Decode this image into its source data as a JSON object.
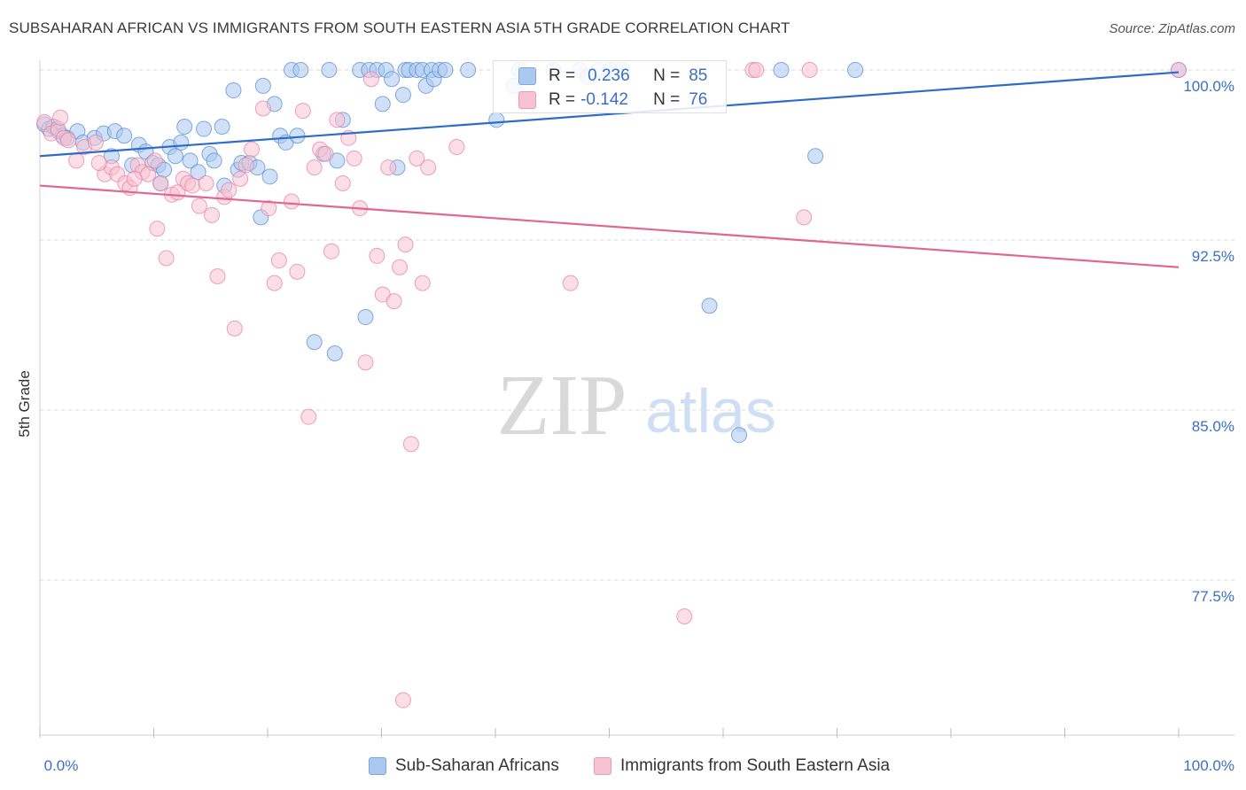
{
  "title": "SUBSAHARAN AFRICAN VS IMMIGRANTS FROM SOUTH EASTERN ASIA 5TH GRADE CORRELATION CHART",
  "source": "Source: ZipAtlas.com",
  "watermark": {
    "zip": "ZIP",
    "atlas": "atlas"
  },
  "colors": {
    "blue": "#5b8ed6",
    "blue_fill": "#aac8f0",
    "blue_line": "#2e6cc8",
    "pink": "#e882a5",
    "pink_fill": "#f7c3d2",
    "pink_line": "#e06694",
    "tick_label": "#3b6fc6",
    "grid": "#d8d8d8"
  },
  "stats": {
    "rows": [
      {
        "r_label": "R =",
        "r_value": "0.236",
        "n_label": "N =",
        "n_value": "85"
      },
      {
        "r_label": "R =",
        "r_value": "-0.142",
        "n_label": "N =",
        "n_value": "76"
      }
    ]
  },
  "legend": {
    "items": [
      {
        "label": "Sub-Saharan Africans"
      },
      {
        "label": "Immigrants from South Eastern Asia"
      }
    ]
  },
  "chart_data": {
    "type": "scatter",
    "title": "SUBSAHARAN AFRICAN VS IMMIGRANTS FROM SOUTH EASTERN ASIA 5TH GRADE CORRELATION CHART",
    "xlabel": "",
    "ylabel": "5th Grade",
    "xlim": [
      0,
      100
    ],
    "ylim": [
      71.2,
      101.5
    ],
    "x_tick_labels": [
      "0.0%",
      "100.0%"
    ],
    "y_ticks": [
      100.0,
      92.5,
      85.0,
      77.5
    ],
    "y_tick_labels": [
      "100.0%",
      "92.5%",
      "85.0%",
      "77.5%"
    ],
    "grid": true,
    "legend_position": "bottom-center",
    "series": [
      {
        "name": "Sub-Saharan Africans",
        "color": "#5b8ed6",
        "trend": {
          "x": [
            0,
            100
          ],
          "y": [
            96.2,
            99.9
          ]
        },
        "points": [
          [
            0.4,
            97.6
          ],
          [
            0.8,
            97.4
          ],
          [
            1.2,
            97.5
          ],
          [
            1.6,
            97.3
          ],
          [
            2.0,
            97.1
          ],
          [
            2.4,
            97.0
          ],
          [
            3.3,
            97.3
          ],
          [
            3.8,
            96.8
          ],
          [
            4.8,
            97.0
          ],
          [
            5.6,
            97.2
          ],
          [
            6.3,
            96.2
          ],
          [
            6.6,
            97.3
          ],
          [
            7.4,
            97.1
          ],
          [
            8.1,
            95.8
          ],
          [
            8.7,
            96.7
          ],
          [
            9.3,
            96.4
          ],
          [
            9.9,
            95.9
          ],
          [
            10.4,
            95.8
          ],
          [
            10.6,
            95.0
          ],
          [
            10.9,
            95.6
          ],
          [
            11.4,
            96.6
          ],
          [
            11.9,
            96.2
          ],
          [
            12.4,
            96.8
          ],
          [
            12.7,
            97.5
          ],
          [
            13.2,
            96.0
          ],
          [
            13.9,
            95.5
          ],
          [
            14.4,
            97.4
          ],
          [
            14.9,
            96.3
          ],
          [
            15.3,
            96.0
          ],
          [
            16.0,
            97.5
          ],
          [
            16.2,
            94.9
          ],
          [
            17.0,
            99.1
          ],
          [
            17.4,
            95.6
          ],
          [
            17.7,
            95.9
          ],
          [
            18.4,
            95.9
          ],
          [
            19.1,
            95.7
          ],
          [
            19.4,
            93.5
          ],
          [
            19.6,
            99.3
          ],
          [
            20.2,
            95.3
          ],
          [
            20.6,
            98.5
          ],
          [
            21.1,
            97.1
          ],
          [
            21.6,
            96.8
          ],
          [
            22.1,
            100.0
          ],
          [
            22.6,
            97.1
          ],
          [
            22.9,
            100.0
          ],
          [
            24.1,
            88.0
          ],
          [
            24.9,
            96.3
          ],
          [
            25.4,
            100.0
          ],
          [
            25.9,
            87.5
          ],
          [
            26.1,
            96.0
          ],
          [
            26.6,
            97.8
          ],
          [
            28.1,
            100.0
          ],
          [
            28.6,
            89.1
          ],
          [
            28.9,
            100.0
          ],
          [
            29.6,
            100.0
          ],
          [
            30.1,
            98.5
          ],
          [
            30.4,
            100.0
          ],
          [
            30.9,
            99.6
          ],
          [
            31.4,
            95.7
          ],
          [
            31.9,
            98.9
          ],
          [
            32.1,
            100.0
          ],
          [
            32.4,
            100.0
          ],
          [
            33.1,
            100.0
          ],
          [
            33.6,
            100.0
          ],
          [
            33.9,
            99.3
          ],
          [
            34.4,
            100.0
          ],
          [
            34.6,
            99.6
          ],
          [
            35.1,
            100.0
          ],
          [
            35.6,
            100.0
          ],
          [
            37.6,
            100.0
          ],
          [
            40.1,
            97.8
          ],
          [
            41.6,
            99.3
          ],
          [
            42.1,
            100.0
          ],
          [
            45.1,
            100.0
          ],
          [
            47.4,
            100.0
          ],
          [
            48.1,
            99.7
          ],
          [
            49.1,
            100.0
          ],
          [
            50.1,
            100.0
          ],
          [
            51.1,
            100.0
          ],
          [
            58.8,
            89.6
          ],
          [
            61.4,
            83.9
          ],
          [
            65.1,
            100.0
          ],
          [
            68.1,
            96.2
          ],
          [
            71.6,
            100.0
          ],
          [
            100.0,
            100.0
          ]
        ]
      },
      {
        "name": "Immigrants from South Eastern Asia",
        "color": "#e882a5",
        "trend": {
          "x": [
            0,
            100
          ],
          "y": [
            94.9,
            91.3
          ]
        },
        "points": [
          [
            0.4,
            97.7
          ],
          [
            1.0,
            97.2
          ],
          [
            1.6,
            97.4
          ],
          [
            2.1,
            97.0
          ],
          [
            2.5,
            96.9
          ],
          [
            3.2,
            96.0
          ],
          [
            3.9,
            96.6
          ],
          [
            4.9,
            96.8
          ],
          [
            5.7,
            95.4
          ],
          [
            6.3,
            95.7
          ],
          [
            6.8,
            95.4
          ],
          [
            7.5,
            95.0
          ],
          [
            7.9,
            94.8
          ],
          [
            8.6,
            95.8
          ],
          [
            9.0,
            95.5
          ],
          [
            9.5,
            95.4
          ],
          [
            10.1,
            96.0
          ],
          [
            10.3,
            93.0
          ],
          [
            10.6,
            95.0
          ],
          [
            11.1,
            91.7
          ],
          [
            11.6,
            94.5
          ],
          [
            12.1,
            94.6
          ],
          [
            12.6,
            95.2
          ],
          [
            13.0,
            95.0
          ],
          [
            13.4,
            94.9
          ],
          [
            14.0,
            94.0
          ],
          [
            14.6,
            95.0
          ],
          [
            15.1,
            93.6
          ],
          [
            15.6,
            90.9
          ],
          [
            16.2,
            94.4
          ],
          [
            16.6,
            94.7
          ],
          [
            17.1,
            88.6
          ],
          [
            17.6,
            95.2
          ],
          [
            18.1,
            95.8
          ],
          [
            18.6,
            96.5
          ],
          [
            19.6,
            98.3
          ],
          [
            20.1,
            93.9
          ],
          [
            20.6,
            90.6
          ],
          [
            21.0,
            91.6
          ],
          [
            22.1,
            94.2
          ],
          [
            22.6,
            91.1
          ],
          [
            23.1,
            98.2
          ],
          [
            23.6,
            84.7
          ],
          [
            24.1,
            95.7
          ],
          [
            24.6,
            96.5
          ],
          [
            25.1,
            96.3
          ],
          [
            25.6,
            92.0
          ],
          [
            26.1,
            97.8
          ],
          [
            26.6,
            95.0
          ],
          [
            27.1,
            97.0
          ],
          [
            27.6,
            96.1
          ],
          [
            28.1,
            93.9
          ],
          [
            28.6,
            87.1
          ],
          [
            29.1,
            99.6
          ],
          [
            29.6,
            91.8
          ],
          [
            30.1,
            90.1
          ],
          [
            30.6,
            95.7
          ],
          [
            31.1,
            89.8
          ],
          [
            31.6,
            91.3
          ],
          [
            32.1,
            92.3
          ],
          [
            32.6,
            83.5
          ],
          [
            33.1,
            96.1
          ],
          [
            33.6,
            90.6
          ],
          [
            34.1,
            95.7
          ],
          [
            36.6,
            96.6
          ],
          [
            46.6,
            90.6
          ],
          [
            56.6,
            75.9
          ],
          [
            62.6,
            100.0
          ],
          [
            67.1,
            93.5
          ],
          [
            67.6,
            100.0
          ],
          [
            31.9,
            72.2
          ],
          [
            62.9,
            100.0
          ],
          [
            100.0,
            100.0
          ],
          [
            1.8,
            97.9
          ],
          [
            5.2,
            95.9
          ],
          [
            8.3,
            95.2
          ]
        ]
      }
    ]
  }
}
